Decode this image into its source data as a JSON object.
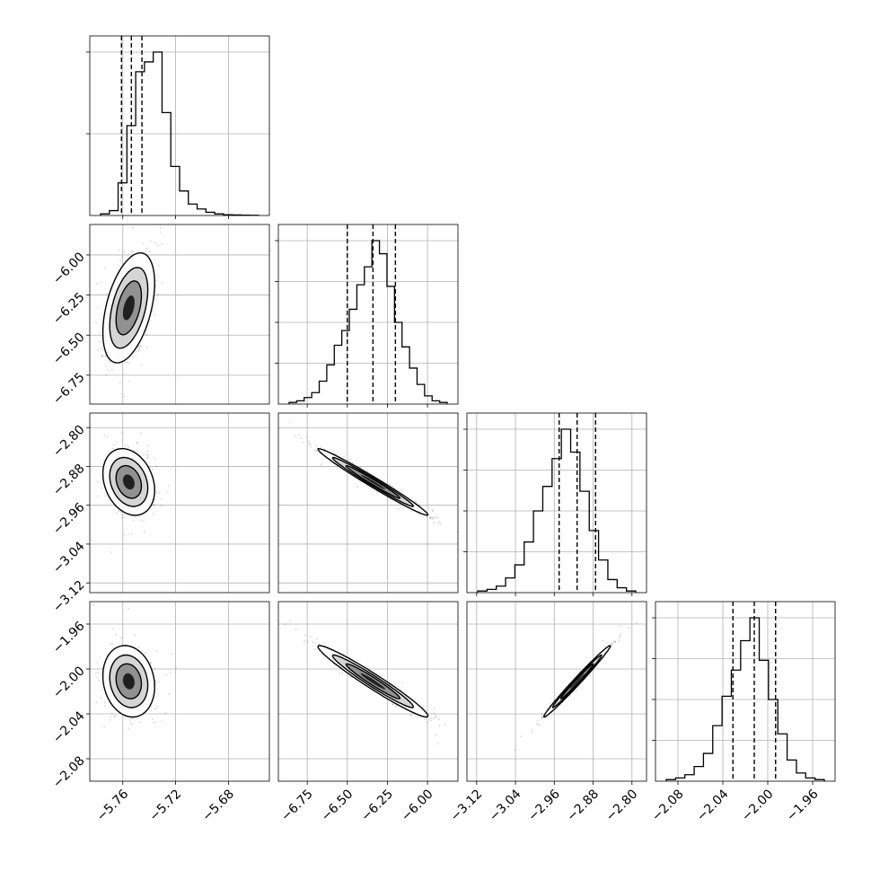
{
  "chart_data": {
    "type": "corner",
    "title": "",
    "parameters": [
      {
        "label": "",
        "range": [
          -5.785,
          -5.649
        ],
        "ticks": [
          -5.76,
          -5.72,
          -5.68
        ],
        "tick_labels": [
          "−5.76",
          "−5.72",
          "−5.68"
        ],
        "quantiles": [
          -5.761,
          -5.7535,
          -5.7455
        ],
        "hist": [
          0.01,
          0.03,
          0.2,
          0.55,
          0.88,
          0.94,
          1.0,
          0.63,
          0.3,
          0.15,
          0.07,
          0.04,
          0.02,
          0.01,
          0.005,
          0.003,
          0.002,
          0.001
        ]
      },
      {
        "label": "",
        "range": [
          -6.93,
          -5.81
        ],
        "ticks": [
          -6.75,
          -6.5,
          -6.25,
          -6.0
        ],
        "tick_labels": [
          "−6.75",
          "−6.50",
          "−6.25",
          "−6.00"
        ],
        "quantiles": [
          -6.5,
          -6.34,
          -6.2
        ],
        "hist": [
          0.01,
          0.02,
          0.04,
          0.07,
          0.14,
          0.24,
          0.36,
          0.45,
          0.58,
          0.73,
          0.84,
          1.0,
          0.92,
          0.72,
          0.5,
          0.35,
          0.22,
          0.12,
          0.05,
          0.02,
          0.01
        ]
      },
      {
        "label": "",
        "range": [
          -3.14,
          -2.77
        ],
        "ticks": [
          -3.12,
          -3.04,
          -2.96,
          -2.88,
          -2.8
        ],
        "tick_labels": [
          "−3.12",
          "−3.04",
          "−2.96",
          "−2.88",
          "−2.80"
        ],
        "quantiles": [
          -2.95,
          -2.913,
          -2.875
        ],
        "hist": [
          0.01,
          0.02,
          0.04,
          0.09,
          0.17,
          0.31,
          0.5,
          0.65,
          0.82,
          1.0,
          0.86,
          0.62,
          0.38,
          0.2,
          0.08,
          0.03,
          0.01
        ]
      },
      {
        "label": "",
        "range": [
          -2.1,
          -1.94
        ],
        "ticks": [
          -2.08,
          -2.04,
          -2.0,
          -1.96
        ],
        "tick_labels": [
          "−2.08",
          "−2.04",
          "−2.00",
          "−1.96"
        ],
        "quantiles": [
          -2.031,
          -2.012,
          -1.993
        ],
        "hist": [
          0.01,
          0.02,
          0.04,
          0.09,
          0.17,
          0.34,
          0.52,
          0.68,
          0.86,
          1.0,
          0.74,
          0.5,
          0.29,
          0.13,
          0.05,
          0.02,
          0.01
        ]
      }
    ],
    "pairs": [
      {
        "row": 1,
        "col": 0,
        "mean": [
          -5.7555,
          -6.33
        ],
        "sd": [
          0.008,
          0.14
        ],
        "rho": 0.45
      },
      {
        "row": 2,
        "col": 0,
        "mean": [
          -5.7555,
          -2.912
        ],
        "sd": [
          0.008,
          0.028
        ],
        "rho": -0.25
      },
      {
        "row": 2,
        "col": 1,
        "mean": [
          -6.34,
          -2.912
        ],
        "sd": [
          0.14,
          0.028
        ],
        "rho": -0.985
      },
      {
        "row": 3,
        "col": 0,
        "mean": [
          -5.7555,
          -2.011
        ],
        "sd": [
          0.008,
          0.013
        ],
        "rho": -0.15
      },
      {
        "row": 3,
        "col": 1,
        "mean": [
          -6.34,
          -2.011
        ],
        "sd": [
          0.14,
          0.013
        ],
        "rho": -0.97
      },
      {
        "row": 3,
        "col": 2,
        "mean": [
          -2.913,
          -2.011
        ],
        "sd": [
          0.028,
          0.013
        ],
        "rho": 0.99
      }
    ],
    "grid": true,
    "colors": {
      "line": "#000000",
      "grid": "#b0b0b0",
      "points": "#000000"
    }
  }
}
